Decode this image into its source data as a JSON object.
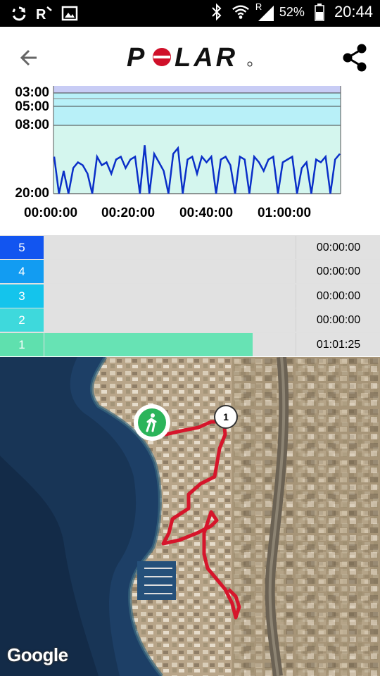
{
  "status_bar": {
    "battery_label": "52%",
    "time_label": "20:44",
    "roaming_label": "R"
  },
  "header": {
    "logo_text": "POLAR"
  },
  "chart": {
    "y_ticks": [
      "03:00",
      "05:00",
      "08:00",
      "20:00"
    ],
    "x_ticks": [
      "00:00:00",
      "00:20:00",
      "00:40:00",
      "01:00:00"
    ]
  },
  "chart_data": {
    "type": "line",
    "title": "",
    "xlabel": "",
    "ylabel": "",
    "x_ticks": [
      "00:00:00",
      "00:20:00",
      "00:40:00",
      "01:00:00"
    ],
    "y_ticks": [
      "03:00",
      "05:00",
      "08:00",
      "20:00"
    ],
    "y_inverted": true,
    "series": [
      {
        "values_min_per_km": [
          13.5,
          20,
          16,
          20,
          15.5,
          14.5,
          15,
          16.5,
          20,
          13.5,
          15,
          14.5,
          16.5,
          14,
          13.5,
          15.5,
          14,
          13.5,
          20,
          11.5,
          20,
          13,
          14.5,
          16,
          20,
          13,
          12,
          20,
          14,
          13.5,
          16.5,
          13.5,
          14.5,
          13.5,
          20,
          14,
          13.5,
          15,
          20,
          13.5,
          14,
          20,
          13.5,
          14.5,
          16,
          14,
          13.5,
          20,
          14.5,
          14,
          13.5,
          20,
          15.5,
          14.5,
          20,
          14,
          14.5,
          13.5,
          20,
          14,
          13
        ]
      }
    ],
    "background_bands": [
      "#c8ccf5",
      "#b8f0f8",
      "#d4f6ee"
    ]
  },
  "zones": [
    {
      "label": "5",
      "time": "00:00:00",
      "fraction": 0.0,
      "color": "#1255f0",
      "bar_color": "#1255f0"
    },
    {
      "label": "4",
      "time": "00:00:00",
      "fraction": 0.0,
      "color": "#129cf2",
      "bar_color": "#129cf2"
    },
    {
      "label": "3",
      "time": "00:00:00",
      "fraction": 0.0,
      "color": "#14c4ec",
      "bar_color": "#14c4ec"
    },
    {
      "label": "2",
      "time": "00:00:00",
      "fraction": 0.0,
      "color": "#3ed9dc",
      "bar_color": "#3ed9dc"
    },
    {
      "label": "1",
      "time": "01:01:25",
      "fraction": 0.83,
      "color": "#5fe0ae",
      "bar_color": "#67e3b4"
    }
  ],
  "map": {
    "attribution": "Google",
    "lap_marker": "1",
    "start_icon": "walking-person-icon"
  }
}
